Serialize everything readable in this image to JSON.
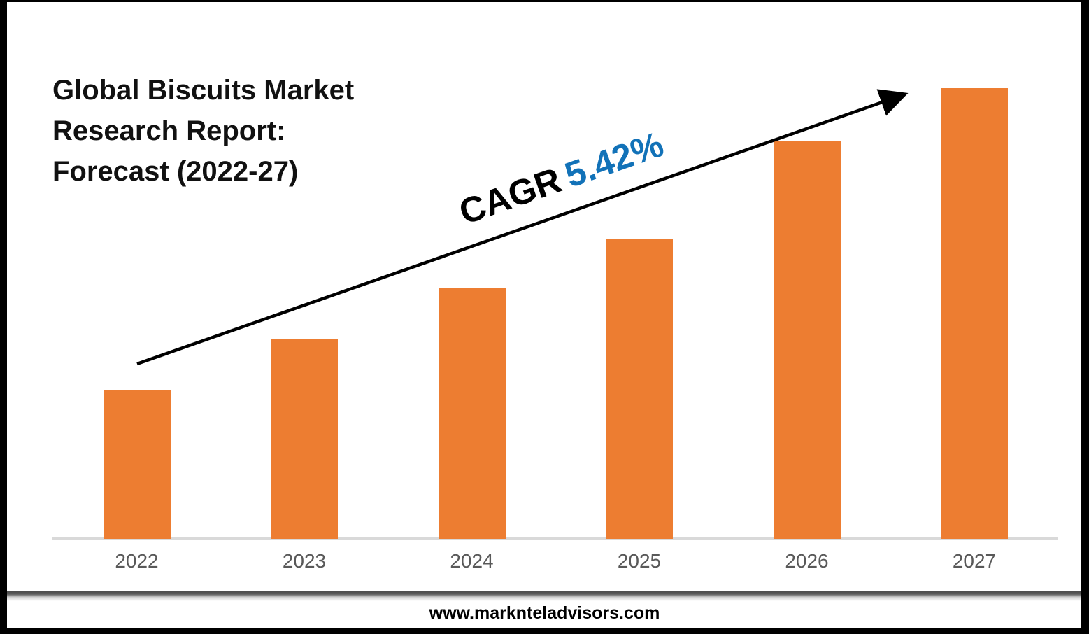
{
  "title": {
    "lines": [
      "Global Biscuits Market",
      "Research Report:",
      "Forecast (2022-27)"
    ],
    "full_text": "Global Biscuits Market Research Report: Forecast (2022-27)"
  },
  "annotation": {
    "prefix": "CAGR",
    "value": "5.42%",
    "prefix_color": "#000000",
    "value_color": "#1272b8"
  },
  "footer": {
    "website": "www.marknteladvisors.com"
  },
  "colors": {
    "bar": "#ed7d31",
    "axis_line": "#d9d9d9",
    "tick_label": "#595959",
    "arrow": "#000000",
    "frame": "#000000"
  },
  "chart_data": {
    "type": "bar",
    "title": "Global Biscuits Market Research Report: Forecast (2022-27)",
    "categories": [
      "2022",
      "2023",
      "2024",
      "2025",
      "2026",
      "2027"
    ],
    "values": [
      213,
      285,
      358,
      428,
      568,
      644
    ],
    "values_note": "no y-axis or data labels shown; values are relative bar heights in pixels (baseline y=770)",
    "xlabel": "",
    "ylabel": "",
    "grid": false,
    "legend": "none",
    "bar_color": "#ed7d31",
    "annotation": "CAGR 5.42% trend arrow rising left-to-right"
  }
}
